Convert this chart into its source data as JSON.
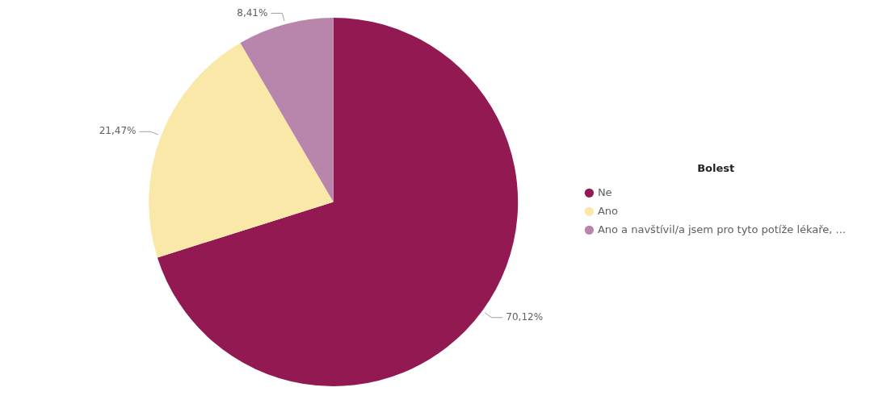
{
  "chart_data": {
    "type": "pie",
    "legend_title": "Bolest",
    "legend": "right",
    "categories": [
      "Ne",
      "Ano",
      "Ano a navštívil/a jsem pro tyto potíže lékaře, ..."
    ],
    "values": [
      70.12,
      21.47,
      8.41
    ],
    "colors": [
      "#931953",
      "#f9e8a8",
      "#b886ad"
    ],
    "value_labels": [
      "70,12%",
      "21,47%",
      "8,41%"
    ]
  }
}
